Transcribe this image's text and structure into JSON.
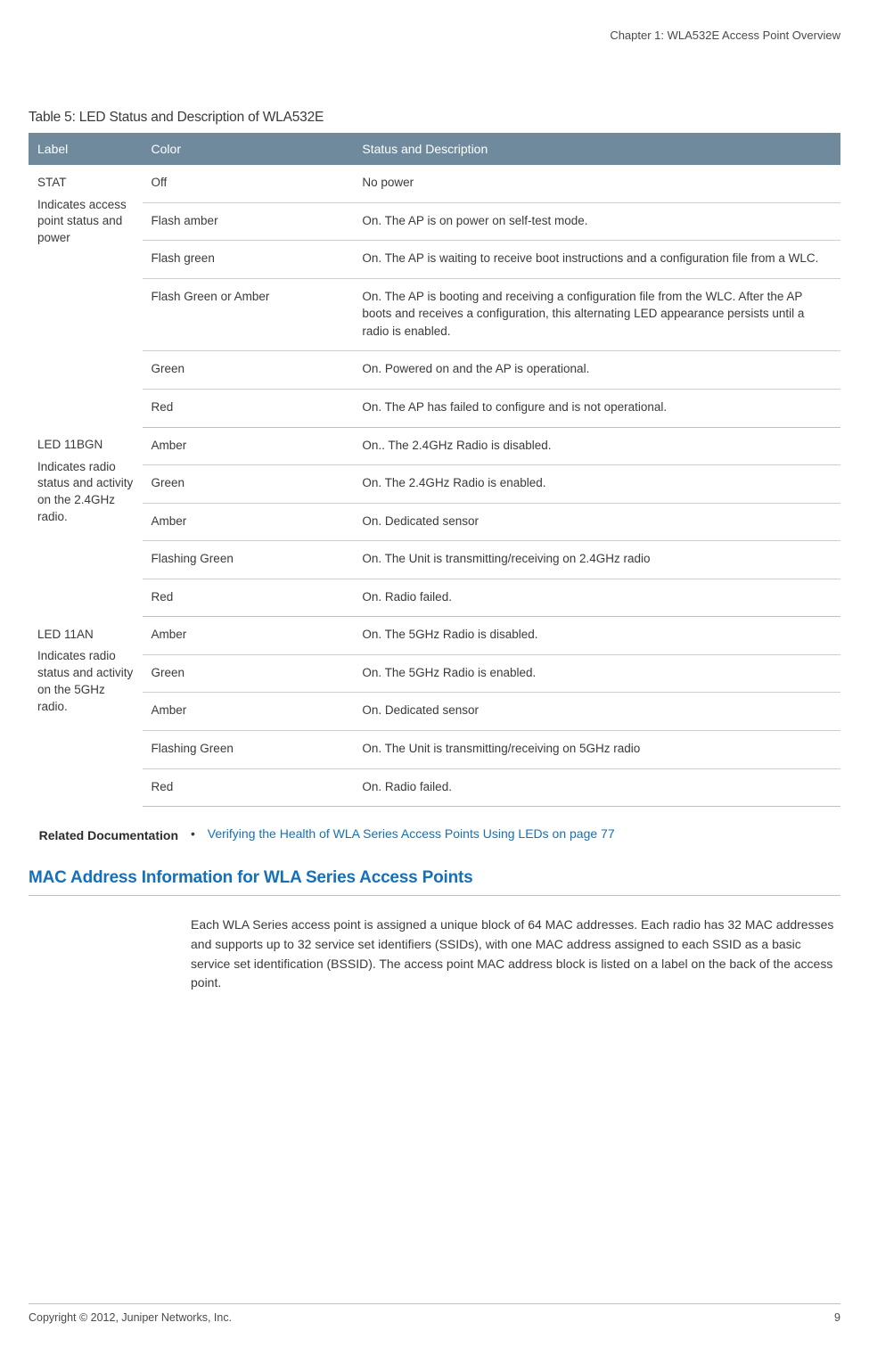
{
  "colors": {
    "table_header_bg": "#6f8a9c",
    "table_header_text": "#ffffff",
    "text": "#3a3a3a",
    "link": "#1670b7",
    "rule_thick": "#bfbfbf",
    "rule_thin": "#cfcfcf",
    "background": "#ffffff"
  },
  "typography": {
    "body_fontsize": 14,
    "table_fontsize": 13.5,
    "caption_fontsize": 15.5,
    "heading_fontsize": 19,
    "header_fontsize": 13,
    "footer_fontsize": 12.5
  },
  "header": {
    "chapter": "Chapter 1: WLA532E Access Point Overview"
  },
  "table": {
    "caption": "Table 5:  LED Status and Description of WLA532E",
    "columns": {
      "label": "Label",
      "color": "Color",
      "desc": "Status and Description"
    },
    "column_widths_pct": [
      14,
      26,
      60
    ],
    "groups": [
      {
        "label_main": "STAT",
        "label_sub": "Indicates access point status and power",
        "rows": [
          {
            "color": "Off",
            "desc": "No power"
          },
          {
            "color": "Flash amber",
            "desc": "On. The AP is on power on self-test mode."
          },
          {
            "color": "Flash green",
            "desc": "On. The AP is waiting to receive boot instructions and a configuration file from a WLC."
          },
          {
            "color": "Flash Green or Amber",
            "desc": "On. The AP is booting and receiving a configuration file from the WLC. After the AP boots and receives a configuration, this alternating LED appearance persists until a radio is enabled."
          },
          {
            "color": "Green",
            "desc": "On. Powered on and the AP is operational."
          },
          {
            "color": "Red",
            "desc": "On. The AP has failed to configure and is not operational."
          }
        ]
      },
      {
        "label_main": "LED 11BGN",
        "label_sub": "Indicates radio status and activity on the 2.4GHz radio.",
        "rows": [
          {
            "color": "Amber",
            "desc": "On.. The 2.4GHz Radio is disabled."
          },
          {
            "color": "Green",
            "desc": "On. The 2.4GHz Radio is enabled."
          },
          {
            "color": "Amber",
            "desc": "On. Dedicated sensor"
          },
          {
            "color": "Flashing Green",
            "desc": "On. The Unit is transmitting/receiving on 2.4GHz radio"
          },
          {
            "color": "Red",
            "desc": "On. Radio failed."
          }
        ]
      },
      {
        "label_main": "LED 11AN",
        "label_sub": "Indicates radio status and activity on the 5GHz radio.",
        "rows": [
          {
            "color": "Amber",
            "desc": "On. The 5GHz Radio is disabled."
          },
          {
            "color": "Green",
            "desc": "On. The 5GHz Radio is enabled."
          },
          {
            "color": "Amber",
            "desc": "On. Dedicated sensor"
          },
          {
            "color": "Flashing Green",
            "desc": "On. The Unit is transmitting/receiving on 5GHz radio"
          },
          {
            "color": "Red",
            "desc": "On. Radio failed."
          }
        ]
      }
    ]
  },
  "related": {
    "label": "Related Documentation",
    "items": [
      {
        "text": "Verifying the Health of WLA Series Access Points Using LEDs on page 77"
      }
    ]
  },
  "section": {
    "heading": "MAC Address Information for WLA Series Access Points",
    "body": "Each WLA Series access point is assigned a unique block of 64 MAC addresses. Each radio has 32 MAC addresses and supports up to 32 service set identifiers (SSIDs), with one MAC address assigned to each SSID as a basic service set identification (BSSID). The access point MAC address block is listed on a label on the back of the access point."
  },
  "footer": {
    "copyright": "Copyright © 2012, Juniper Networks, Inc.",
    "page_number": "9"
  }
}
